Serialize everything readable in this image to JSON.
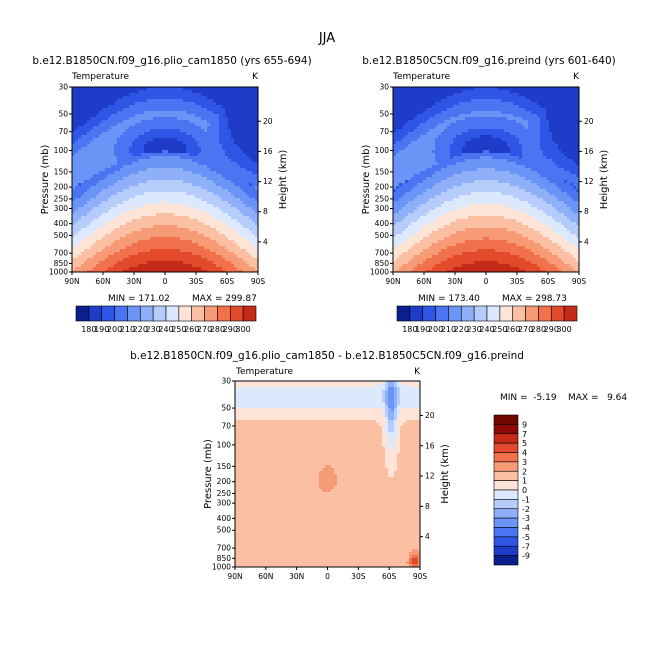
{
  "figure": {
    "title": "JJA"
  },
  "chart_data": [
    {
      "type": "heatmap",
      "title": "b.e12.B1850CN.f09_g16.plio_cam1850 (yrs 655-694)",
      "variable": "Temperature",
      "units": "K",
      "xlabel": "",
      "ylabel": "Pressure (mb)",
      "y2label": "Height (km)",
      "x_ticks": [
        "90N",
        "60N",
        "30N",
        "0",
        "30S",
        "60S",
        "90S"
      ],
      "y_ticks": [
        "30",
        "50",
        "70",
        "100",
        "150",
        "200",
        "250",
        "300",
        "400",
        "500",
        "700",
        "850",
        "1000"
      ],
      "y2_ticks": [
        "20",
        "16",
        "12",
        "8",
        "4"
      ],
      "ylim": [
        1000,
        30
      ],
      "y_scale": "log",
      "min_label": "MIN = 171.02",
      "max_label": "MAX = 299.87",
      "min": 171.02,
      "max": 299.87,
      "colorbar_labels": [
        "180",
        "190",
        "200",
        "210",
        "220",
        "230",
        "240",
        "250",
        "260",
        "270",
        "280",
        "290",
        "300"
      ]
    },
    {
      "type": "heatmap",
      "title": "b.e12.B1850C5CN.f09_g16.preind (yrs 601-640)",
      "variable": "Temperature",
      "units": "K",
      "xlabel": "",
      "ylabel": "Pressure (mb)",
      "y2label": "Height (km)",
      "x_ticks": [
        "90N",
        "60N",
        "30N",
        "0",
        "30S",
        "60S",
        "90S"
      ],
      "y_ticks": [
        "30",
        "50",
        "70",
        "100",
        "150",
        "200",
        "250",
        "300",
        "400",
        "500",
        "700",
        "850",
        "1000"
      ],
      "y2_ticks": [
        "20",
        "16",
        "12",
        "8",
        "4"
      ],
      "ylim": [
        1000,
        30
      ],
      "y_scale": "log",
      "min_label": "MIN = 173.40",
      "max_label": "MAX = 298.73",
      "min": 173.4,
      "max": 298.73,
      "colorbar_labels": [
        "180",
        "190",
        "200",
        "210",
        "220",
        "230",
        "240",
        "250",
        "260",
        "270",
        "280",
        "290",
        "300"
      ]
    },
    {
      "type": "heatmap",
      "title": "b.e12.B1850CN.f09_g16.plio_cam1850 - b.e12.B1850C5CN.f09_g16.preind",
      "variable": "Temperature",
      "units": "K",
      "xlabel": "",
      "ylabel": "Pressure (mb)",
      "y2label": "Height (km)",
      "x_ticks": [
        "90N",
        "60N",
        "30N",
        "0",
        "30S",
        "60S",
        "90S"
      ],
      "y_ticks": [
        "30",
        "50",
        "70",
        "100",
        "150",
        "200",
        "250",
        "300",
        "400",
        "500",
        "700",
        "850",
        "1000"
      ],
      "y2_ticks": [
        "20",
        "16",
        "12",
        "8",
        "4"
      ],
      "ylim": [
        1000,
        30
      ],
      "y_scale": "log",
      "min_label": "MIN =  -5.19",
      "max_label": "MAX =   9.64",
      "min": -5.19,
      "max": 9.64,
      "colorbar_labels": [
        "9",
        "7",
        "5",
        "4",
        "3",
        "2",
        "1",
        "0",
        "-1",
        "-2",
        "-3",
        "-4",
        "-5",
        "-7",
        "-9"
      ]
    }
  ],
  "colors": {
    "abs_scale": [
      "#0a1f8c",
      "#1e3cc8",
      "#2f55e6",
      "#4a74f2",
      "#6b94f7",
      "#8fb0f9",
      "#b6cdfb",
      "#dce8fd",
      "#fde4d6",
      "#fbbfa3",
      "#f79a76",
      "#f0714b",
      "#e34a2b",
      "#c42a17",
      "#8c0b06"
    ],
    "diff_scale": [
      "#0a1f8c",
      "#1e3cc8",
      "#2f55e6",
      "#4a74f2",
      "#6b94f7",
      "#8fb0f9",
      "#b6cdfb",
      "#dce8fd",
      "#fde4d6",
      "#fbbfa3",
      "#f79a76",
      "#f0714b",
      "#e34a2b",
      "#c42a17",
      "#8c0b06",
      "#6e0602"
    ]
  }
}
